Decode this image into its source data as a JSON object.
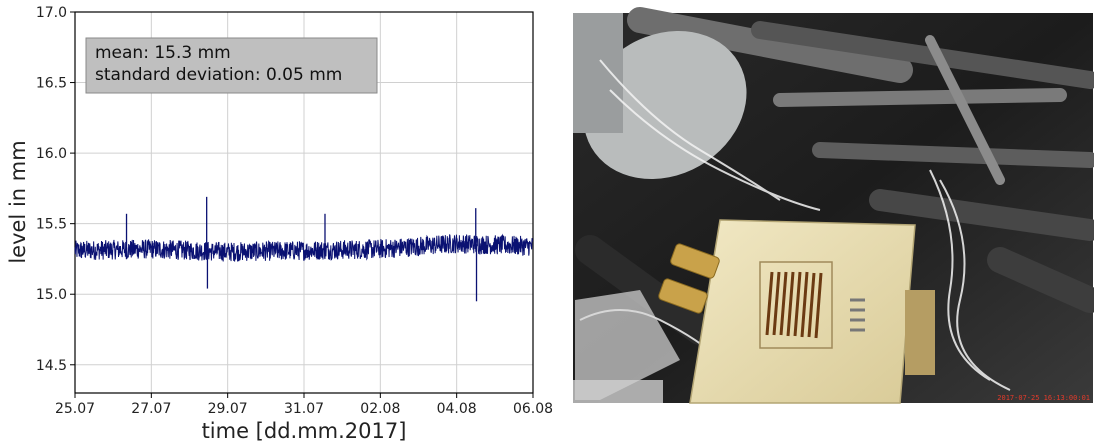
{
  "chart_data": {
    "type": "line",
    "title": "",
    "xlabel": "time [dd.mm.2017]",
    "ylabel": "level in mm",
    "ylim": [
      14.3,
      17.0
    ],
    "xlim": [
      "2017-07-25",
      "2017-08-06"
    ],
    "yticks": [
      "14.5",
      "15.0",
      "15.5",
      "16.0",
      "16.5",
      "17.0"
    ],
    "xticks": [
      "25.07",
      "27.07",
      "29.07",
      "31.07",
      "02.08",
      "04.08",
      "06.08"
    ],
    "grid": true,
    "series": [
      {
        "color": "#0a1172",
        "baseline": [
          {
            "x": "2017-07-25",
            "y": 15.31
          },
          {
            "x": "2017-07-27",
            "y": 15.32
          },
          {
            "x": "2017-07-29",
            "y": 15.3
          },
          {
            "x": "2017-07-31",
            "y": 15.31
          },
          {
            "x": "2017-08-02",
            "y": 15.32
          },
          {
            "x": "2017-08-04",
            "y": 15.36
          },
          {
            "x": "2017-08-06",
            "y": 15.34
          }
        ],
        "noise_amplitude": 0.07,
        "spikes": [
          {
            "x": "2017-07-26",
            "y": 15.57
          },
          {
            "x": "2017-07-28",
            "y": 15.69
          },
          {
            "x": "2017-07-28",
            "y": 15.04
          },
          {
            "x": "2017-07-31",
            "y": 15.57
          },
          {
            "x": "2017-08-04",
            "y": 15.61
          },
          {
            "x": "2017-08-04",
            "y": 14.95
          }
        ]
      }
    ],
    "annotation": {
      "mean": "mean: 15.3 mm",
      "std": "standard deviation: 0.05 mm",
      "placement": "top-left"
    }
  },
  "photo": {
    "description_icon": "detector-photo",
    "timestamp": "2017-07-25 16:13:00:01"
  }
}
